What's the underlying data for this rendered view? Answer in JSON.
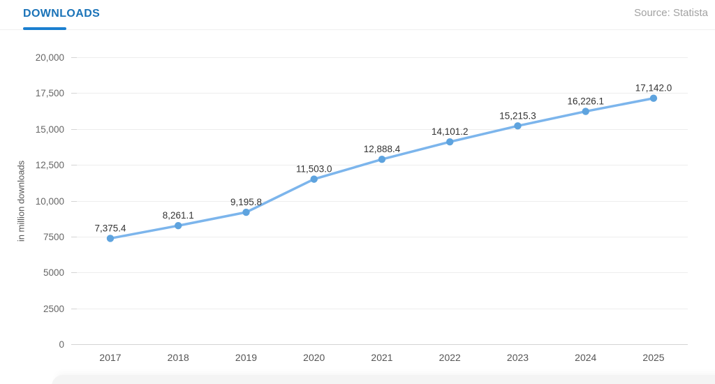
{
  "header": {
    "title": "DOWNLOADS",
    "source": "Source: Statista"
  },
  "colors": {
    "title_blue": "#1a73b8",
    "tab_indicator": "#1b7fd0",
    "line": "#7cb5ec",
    "marker": "#5ea3de",
    "gridline": "#ededed",
    "axis_line": "#d4d4d4",
    "tick_text": "#666666",
    "x_tick_text": "#555555",
    "data_label_text": "#333333",
    "source_text": "#a2a2a2"
  },
  "chart_data": {
    "type": "line",
    "title": "DOWNLOADS",
    "source": "Source: Statista",
    "categories": [
      "2017",
      "2018",
      "2019",
      "2020",
      "2021",
      "2022",
      "2023",
      "2024",
      "2025"
    ],
    "series": [
      {
        "name": "Downloads",
        "values": [
          7375.4,
          8261.1,
          9195.8,
          11503.0,
          12888.4,
          14101.2,
          15215.3,
          16226.1,
          17142.0
        ]
      }
    ],
    "data_labels": [
      "7,375.4",
      "8,261.1",
      "9,195.8",
      "11,503.0",
      "12,888.4",
      "14,101.2",
      "15,215.3",
      "16,226.1",
      "17,142.0"
    ],
    "xlabel": "",
    "ylabel": "in million downloads",
    "ylim": [
      0,
      20000
    ],
    "ytick_step": 2500,
    "ytick_labels": [
      "0",
      "2500",
      "5000",
      "7500",
      "10,000",
      "12,500",
      "15,000",
      "17,500",
      "20,000"
    ],
    "grid": true,
    "legend_position": "none"
  }
}
